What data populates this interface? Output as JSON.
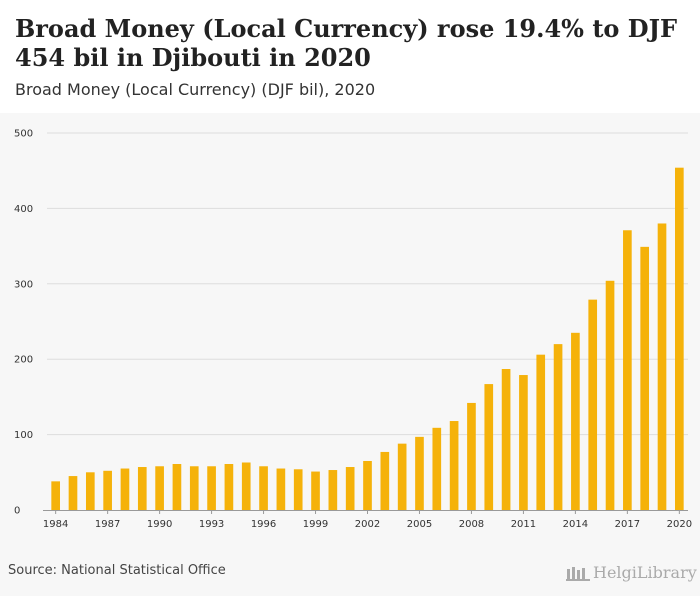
{
  "header": {
    "title": "Broad Money (Local Currency) rose 19.4% to DJF 454 bil in Djibouti in 2020",
    "subtitle": "Broad Money (Local Currency) (DJF bil), 2020"
  },
  "footer": {
    "source": "Source: National Statistical Office",
    "logo_text": "HelgiLibrary"
  },
  "colors": {
    "bar": "#f5b20a",
    "grid": "#dddddd",
    "axis": "#999999"
  },
  "chart_data": {
    "type": "bar",
    "title": "Broad Money (Local Currency) rose 19.4% to DJF 454 bil in Djibouti in 2020",
    "subtitle": "Broad Money (Local Currency) (DJF bil), 2020",
    "xlabel": "",
    "ylabel": "",
    "ylim": [
      0,
      500
    ],
    "yticks": [
      0,
      100,
      200,
      300,
      400,
      500
    ],
    "grid": true,
    "legend": "none",
    "xtick_labels": [
      "1984",
      "1987",
      "1990",
      "1993",
      "1996",
      "1999",
      "2002",
      "2005",
      "2008",
      "2011",
      "2014",
      "2017",
      "2020"
    ],
    "categories": [
      "1984",
      "1985",
      "1986",
      "1987",
      "1988",
      "1989",
      "1990",
      "1991",
      "1992",
      "1993",
      "1994",
      "1995",
      "1996",
      "1997",
      "1998",
      "1999",
      "2000",
      "2001",
      "2002",
      "2003",
      "2004",
      "2005",
      "2006",
      "2007",
      "2008",
      "2009",
      "2010",
      "2011",
      "2012",
      "2013",
      "2014",
      "2015",
      "2016",
      "2017",
      "2018",
      "2019",
      "2020"
    ],
    "values": [
      38,
      45,
      50,
      52,
      55,
      57,
      58,
      61,
      58,
      58,
      61,
      63,
      58,
      55,
      54,
      51,
      53,
      57,
      65,
      77,
      88,
      97,
      109,
      118,
      142,
      167,
      187,
      179,
      206,
      220,
      235,
      279,
      304,
      371,
      349,
      380,
      454
    ]
  }
}
